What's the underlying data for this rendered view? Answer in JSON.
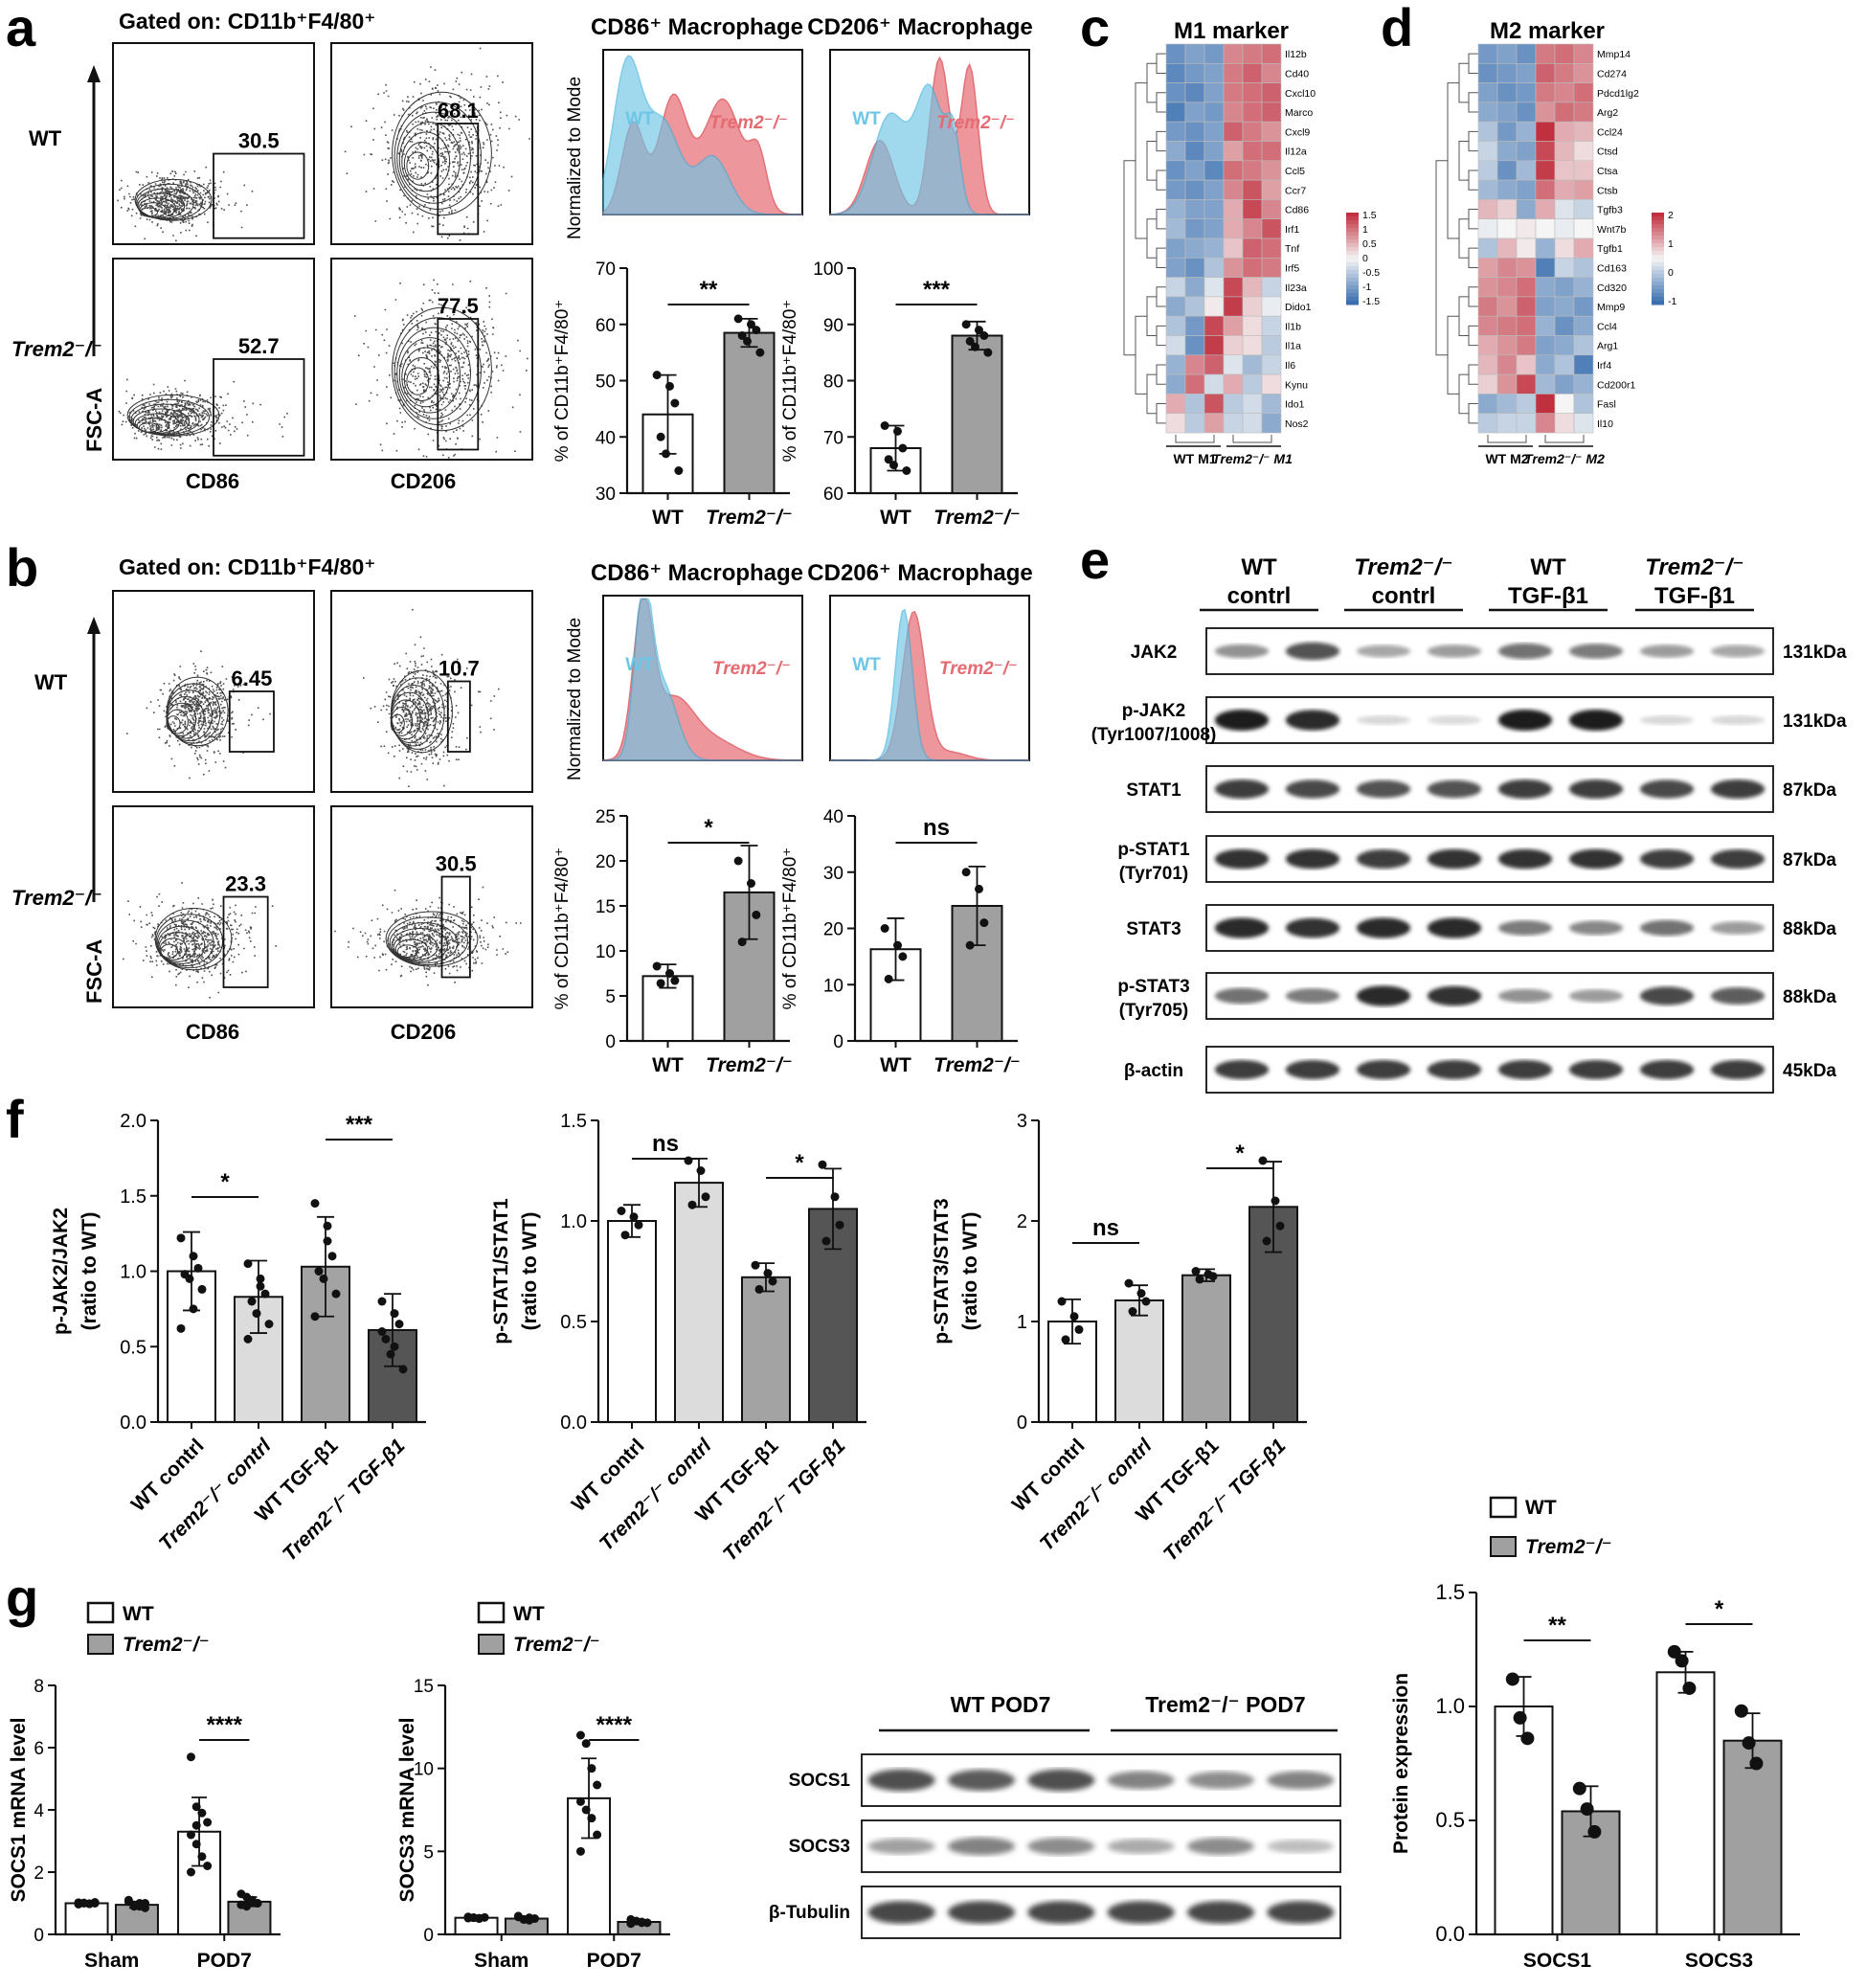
{
  "panels": {
    "a": "a",
    "b": "b",
    "c": "c",
    "d": "d",
    "e": "e",
    "f": "f",
    "g": "g"
  },
  "colors": {
    "wt": "#6ec6e6",
    "ko": "#e8747a",
    "overlap": "#8d9fb8",
    "bar_white": "#ffffff",
    "bar_light": "#dcdcdc",
    "bar_mid": "#a3a3a3",
    "bar_dark": "#555555",
    "bar_gray": "#a0a0a0",
    "hm_high": "#c0303f",
    "hm_low": "#3a6fb0"
  },
  "a": {
    "gated": "Gated on: CD11b⁺F4/80⁺",
    "row_wt": "WT",
    "row_ko": "Trem2⁻/⁻",
    "y_axis": "FSC-A",
    "x1": "CD86",
    "x2": "CD206",
    "gates": [
      "30.5",
      "68.1",
      "52.7",
      "77.5"
    ],
    "hist_ylabel": "Normalized to Mode",
    "hist1_title": "CD86⁺ Macrophage",
    "hist2_title": "CD206⁺ Macrophage",
    "hist_wt": "WT",
    "hist_ko": "Trem2⁻/⁻",
    "bar_ylabel": "% of CD11b⁺F4/80⁺",
    "bar1": {
      "ylim": [
        30,
        70
      ],
      "ticks": [
        "30",
        "40",
        "50",
        "60",
        "70"
      ],
      "wt": 44,
      "wt_sd": 7,
      "ko": 58.5,
      "ko_sd": 2.5,
      "wt_pts": [
        51,
        49,
        46,
        40,
        37,
        34
      ],
      "ko_pts": [
        61,
        60,
        59,
        58,
        57,
        55
      ],
      "sig": "**"
    },
    "bar2": {
      "ylim": [
        60,
        100
      ],
      "ticks": [
        "60",
        "70",
        "80",
        "90",
        "100"
      ],
      "wt": 68,
      "wt_sd": 4,
      "ko": 88,
      "ko_sd": 2.5,
      "wt_pts": [
        72,
        71,
        68,
        66,
        65,
        64
      ],
      "ko_pts": [
        90,
        89,
        88,
        87,
        86,
        85
      ],
      "sig": "***"
    },
    "xcat": [
      "WT",
      "Trem2⁻/⁻"
    ]
  },
  "b": {
    "gated": "Gated on: CD11b⁺F4/80⁺",
    "row_wt": "WT",
    "row_ko": "Trem2⁻/⁻",
    "y_axis": "FSC-A",
    "x1": "CD86",
    "x2": "CD206",
    "gates": [
      "6.45",
      "10.7",
      "23.3",
      "30.5"
    ],
    "hist_ylabel": "Normalized to Mode",
    "hist1_title": "CD86⁺ Macrophage",
    "hist2_title": "CD206⁺ Macrophage",
    "hist_wt": "WT",
    "hist_ko": "Trem2⁻/⁻",
    "bar_ylabel": "% of CD11b⁺F4/80⁺",
    "bar1": {
      "ylim": [
        0,
        25
      ],
      "ticks": [
        "0",
        "5",
        "10",
        "15",
        "20",
        "25"
      ],
      "wt": 7.2,
      "wt_sd": 1.3,
      "ko": 16.5,
      "ko_sd": 5.2,
      "wt_pts": [
        8.3,
        7.5,
        6.7,
        6.4
      ],
      "ko_pts": [
        20,
        17.5,
        14,
        11
      ],
      "sig": "*"
    },
    "bar2": {
      "ylim": [
        0,
        40
      ],
      "ticks": [
        "0",
        "10",
        "20",
        "30",
        "40"
      ],
      "wt": 16.3,
      "wt_sd": 5.5,
      "ko": 24,
      "ko_sd": 7,
      "wt_pts": [
        20,
        17,
        15,
        11
      ],
      "ko_pts": [
        30,
        27,
        21,
        17
      ],
      "sig": "ns"
    },
    "xcat": [
      "WT",
      "Trem2⁻/⁻"
    ]
  },
  "c": {
    "title": "M1 marker",
    "genes": [
      "Il12b",
      "Cd40",
      "Cxcl10",
      "Marco",
      "Cxcl9",
      "Il12a",
      "Ccl5",
      "Ccr7",
      "Cd86",
      "Irf1",
      "Tnf",
      "Irf5",
      "Il23a",
      "Dido1",
      "Il1b",
      "Il1a",
      "Il6",
      "Kynu",
      "Ido1",
      "Nos2"
    ],
    "legend": [
      "1.5",
      "1",
      "0.5",
      "0",
      "-0.5",
      "-1",
      "-1.5"
    ],
    "group1": "WT M1",
    "group2": "Trem2⁻/⁻ M1",
    "values": [
      [
        -1.2,
        -1,
        -1.1,
        0.9,
        1,
        1.1
      ],
      [
        -1.3,
        -1.1,
        -1,
        1,
        1.2,
        0.9
      ],
      [
        -1.2,
        -1.3,
        -1,
        1,
        1.1,
        1.2
      ],
      [
        -1.4,
        -1,
        -1.1,
        0.9,
        1.1,
        1.2
      ],
      [
        -1.1,
        -1.2,
        -1,
        1.2,
        1,
        0.8
      ],
      [
        -0.9,
        -1.3,
        -1,
        0.7,
        1.1,
        1.1
      ],
      [
        -1.2,
        -1,
        -1.3,
        1.1,
        1,
        0.8
      ],
      [
        -1.1,
        -1.2,
        -1,
        0.9,
        1.3,
        0.7
      ],
      [
        -0.8,
        -1,
        -1,
        0.6,
        1.4,
        0.9
      ],
      [
        -0.7,
        -1.1,
        -1,
        0.6,
        0.9,
        1.3
      ],
      [
        -1,
        -0.9,
        -0.8,
        0.4,
        1.2,
        1.1
      ],
      [
        -1,
        -1.2,
        -0.6,
        0.8,
        1.1,
        1
      ],
      [
        -0.4,
        -0.9,
        -0.2,
        1.4,
        0.5,
        -0.4
      ],
      [
        -0.9,
        -0.6,
        0.1,
        1.5,
        0.3,
        -0.1
      ],
      [
        -0.6,
        -1.1,
        1.4,
        0.7,
        0.2,
        -0.4
      ],
      [
        -0.3,
        -1.2,
        1.5,
        0.3,
        0.2,
        -0.5
      ],
      [
        -0.8,
        0.9,
        1.2,
        -0.2,
        -0.7,
        -0.4
      ],
      [
        -0.9,
        1.1,
        -0.3,
        0.6,
        -0.5,
        0.2
      ],
      [
        0.6,
        -0.6,
        1.3,
        -0.5,
        -0.3,
        -0.7
      ],
      [
        0.2,
        -0.5,
        0.7,
        -0.4,
        -0.3,
        -0.9
      ]
    ]
  },
  "d": {
    "title": "M2 marker",
    "genes": [
      "Mmp14",
      "Cd274",
      "Pdcd1lg2",
      "Arg2",
      "Ccl24",
      "Ctsd",
      "Ctsa",
      "Ctsb",
      "Tgfb3",
      "Wnt7b",
      "Tgfb1",
      "Cd163",
      "Cd320",
      "Mmp9",
      "Ccl4",
      "Arg1",
      "Irf4",
      "Cd200r1",
      "Fasl",
      "Il10"
    ],
    "legend": [
      "2",
      "1",
      "0",
      "-1"
    ],
    "group1": "WT M2",
    "group2": "Trem2⁻/⁻ M2",
    "values": [
      [
        -1.1,
        -1,
        -1.2,
        1,
        1.1,
        0.9
      ],
      [
        -1.2,
        -1.1,
        -1,
        1.2,
        1,
        0.8
      ],
      [
        -1,
        -1.2,
        -1.1,
        1,
        0.9,
        1.1
      ],
      [
        -0.9,
        -1,
        -1.2,
        0.8,
        1.1,
        1
      ],
      [
        -0.6,
        -1.1,
        -0.8,
        1.6,
        0.6,
        0.5
      ],
      [
        -0.4,
        -0.9,
        -1,
        1.4,
        0.5,
        0.2
      ],
      [
        -0.5,
        -1.2,
        -0.7,
        1.5,
        0.4,
        0.4
      ],
      [
        -0.7,
        -0.9,
        -1,
        1.1,
        0.6,
        0.7
      ],
      [
        0.5,
        0.3,
        -0.9,
        0.6,
        -0.2,
        -0.4
      ],
      [
        -0.1,
        0,
        0.1,
        0,
        -0.1,
        0
      ],
      [
        -0.6,
        0.5,
        0.1,
        -0.8,
        0.2,
        0.6
      ],
      [
        0.7,
        0.9,
        0.8,
        -1.4,
        -0.4,
        -0.6
      ],
      [
        0.8,
        0.9,
        1.1,
        -0.9,
        -1,
        -0.8
      ],
      [
        1,
        0.8,
        1.2,
        -1,
        -0.9,
        -1.1
      ],
      [
        0.9,
        1,
        1.1,
        -0.8,
        -1.2,
        -0.9
      ],
      [
        0.6,
        0.8,
        1,
        -1,
        -0.9,
        -0.6
      ],
      [
        0.5,
        0.9,
        0.4,
        -0.9,
        -0.6,
        -1.4
      ],
      [
        0.3,
        0.8,
        1.4,
        -0.7,
        -1,
        -0.8
      ],
      [
        -0.9,
        -0.7,
        -0.5,
        1.8,
        0,
        -0.6
      ],
      [
        -0.5,
        -0.4,
        -0.4,
        0.9,
        0.2,
        -0.2
      ]
    ]
  },
  "e": {
    "headers": [
      "WT\ncontrl",
      "Trem2⁻/⁻\ncontrl",
      "WT\nTGF-β1",
      "Trem2⁻/⁻\nTGF-β1"
    ],
    "h1": [
      "WT",
      "Trem2⁻/⁻",
      "WT",
      "Trem2⁻/⁻"
    ],
    "h2": [
      "contrl",
      "contrl",
      "TGF-β1",
      "TGF-β1"
    ],
    "rows": [
      {
        "label": "JAK2",
        "sub": "",
        "kda": "131kDa",
        "band": [
          0.45,
          0.75,
          0.35,
          0.4,
          0.6,
          0.55,
          0.4,
          0.35
        ]
      },
      {
        "label": "p-JAK2",
        "sub": "(Tyr1007/1008)",
        "kda": "131kDa",
        "band": [
          1,
          0.95,
          0.12,
          0.1,
          1,
          1,
          0.12,
          0.12
        ]
      },
      {
        "label": "STAT1",
        "sub": "",
        "kda": "87kDa",
        "band": [
          0.85,
          0.8,
          0.75,
          0.75,
          0.85,
          0.85,
          0.8,
          0.85
        ]
      },
      {
        "label": "p-STAT1",
        "sub": "(Tyr701)",
        "kda": "87kDa",
        "band": [
          0.9,
          0.9,
          0.85,
          0.9,
          0.9,
          0.9,
          0.85,
          0.85
        ]
      },
      {
        "label": "STAT3",
        "sub": "",
        "kda": "88kDa",
        "band": [
          0.95,
          0.9,
          0.95,
          0.95,
          0.55,
          0.5,
          0.6,
          0.4
        ]
      },
      {
        "label": "p-STAT3",
        "sub": "(Tyr705)",
        "kda": "88kDa",
        "band": [
          0.6,
          0.55,
          0.95,
          0.9,
          0.45,
          0.4,
          0.8,
          0.7
        ]
      },
      {
        "label": "β-actin",
        "sub": "",
        "kda": "45kDa",
        "band": [
          0.85,
          0.85,
          0.85,
          0.85,
          0.85,
          0.85,
          0.85,
          0.85
        ]
      }
    ]
  },
  "f": {
    "xcats": [
      "WT contrl",
      "Trem2⁻/⁻ contrl",
      "WT TGF-β1",
      "Trem2⁻/⁻ TGF-β1"
    ],
    "plots": [
      {
        "ylabel1": "p-JAK2/JAK2",
        "ylabel2": "(ratio to WT)",
        "ylim": [
          0,
          2
        ],
        "ticks": [
          "0.0",
          "0.5",
          "1.0",
          "1.5",
          "2.0"
        ],
        "means": [
          1,
          0.83,
          1.03,
          0.61
        ],
        "sd": [
          0.26,
          0.24,
          0.33,
          0.24
        ],
        "pts": [
          [
            1.22,
            1.1,
            1.02,
            0.98,
            0.95,
            0.88,
            0.62,
            0.75
          ],
          [
            1.05,
            0.95,
            0.85,
            0.8,
            0.72,
            0.65,
            0.55,
            0.9
          ],
          [
            1.45,
            1.3,
            1.1,
            1,
            0.95,
            0.85,
            0.7,
            1.2
          ],
          [
            0.8,
            0.72,
            0.65,
            0.55,
            0.45,
            0.35,
            0.6,
            0.5
          ]
        ],
        "sigs": [
          {
            "a": 0,
            "b": 1,
            "label": "*"
          },
          {
            "a": 2,
            "b": 3,
            "label": "***"
          }
        ]
      },
      {
        "ylabel1": "p-STAT1/STAT1",
        "ylabel2": "(ratio to WT)",
        "ylim": [
          0,
          1.5
        ],
        "ticks": [
          "0.0",
          "0.5",
          "1.0",
          "1.5"
        ],
        "means": [
          1,
          1.19,
          0.72,
          1.06
        ],
        "sd": [
          0.08,
          0.12,
          0.07,
          0.2
        ],
        "pts": [
          [
            1.05,
            1.02,
            0.98,
            0.93
          ],
          [
            1.3,
            1.25,
            1.12,
            1.08
          ],
          [
            0.78,
            0.74,
            0.7,
            0.66
          ],
          [
            1.28,
            1.12,
            0.98,
            0.9
          ]
        ],
        "sigs": [
          {
            "a": 0,
            "b": 1,
            "label": "ns"
          },
          {
            "a": 2,
            "b": 3,
            "label": "*"
          }
        ]
      },
      {
        "ylabel1": "p-STAT3/STAT3",
        "ylabel2": "(ratio to WT)",
        "ylim": [
          0,
          3
        ],
        "ticks": [
          "0",
          "1",
          "2",
          "3"
        ],
        "means": [
          1,
          1.21,
          1.46,
          2.14
        ],
        "sd": [
          0.22,
          0.15,
          0.06,
          0.45
        ],
        "pts": [
          [
            1.2,
            1.05,
            0.92,
            0.82
          ],
          [
            1.38,
            1.28,
            1.2,
            1.1
          ],
          [
            1.5,
            1.47,
            1.45,
            1.42
          ],
          [
            2.6,
            2.2,
            1.95,
            1.8
          ]
        ],
        "sigs": [
          {
            "a": 0,
            "b": 1,
            "label": "ns"
          },
          {
            "a": 2,
            "b": 3,
            "label": "*"
          }
        ]
      }
    ]
  },
  "g": {
    "legend_wt": "WT",
    "legend_ko": "Trem2⁻/⁻",
    "socs1": {
      "ylabel": "SOCS1 mRNA level",
      "ylim": [
        0,
        8
      ],
      "ticks": [
        "0",
        "2",
        "4",
        "6",
        "8"
      ],
      "cats": [
        "Sham",
        "POD7"
      ],
      "wt": [
        1,
        3.3
      ],
      "wt_sd": [
        0.05,
        1.1
      ],
      "ko": [
        0.95,
        1.05
      ],
      "ko_sd": [
        0.1,
        0.15
      ],
      "wt_pts": [
        [
          1.02,
          1,
          0.98,
          1.03,
          0.97,
          1.01,
          0.99,
          1
        ],
        [
          5.7,
          4.1,
          3.9,
          3.6,
          3.2,
          2.9,
          2.5,
          2.2,
          2,
          3.5
        ]
      ],
      "ko_pts": [
        [
          1.1,
          0.9,
          1,
          0.85,
          1.05,
          0.95,
          0.9,
          1
        ],
        [
          1.3,
          1.2,
          1.1,
          1,
          0.95,
          0.9,
          1.05,
          1
        ]
      ],
      "sig": "****"
    },
    "socs3": {
      "ylabel": "SOCS3 mRNA level",
      "ylim": [
        0,
        15
      ],
      "ticks": [
        "0",
        "5",
        "10",
        "15"
      ],
      "cats": [
        "Sham",
        "POD7"
      ],
      "wt": [
        1,
        8.2
      ],
      "wt_sd": [
        0.08,
        2.4
      ],
      "ko": [
        0.95,
        0.75
      ],
      "ko_sd": [
        0.1,
        0.12
      ],
      "wt_pts": [
        [
          1.05,
          1,
          0.95,
          1.02,
          0.98,
          1.01,
          0.97
        ],
        [
          12,
          11.5,
          10,
          9,
          8,
          7.5,
          7,
          6,
          5
        ]
      ],
      "ko_pts": [
        [
          1.1,
          0.9,
          1,
          0.95,
          1.05,
          0.9,
          0.85
        ],
        [
          0.9,
          0.8,
          0.75,
          0.7,
          0.65,
          0.8,
          0.7
        ]
      ],
      "sig": "****"
    },
    "blot": {
      "hdr1": "WT POD7",
      "hdr2": "Trem2⁻/⁻ POD7",
      "rows": [
        {
          "label": "SOCS1",
          "band": [
            0.8,
            0.75,
            0.8,
            0.55,
            0.5,
            0.55
          ]
        },
        {
          "label": "SOCS3",
          "band": [
            0.4,
            0.55,
            0.5,
            0.35,
            0.5,
            0.25
          ]
        },
        {
          "label": "β-Tubulin",
          "band": [
            0.85,
            0.85,
            0.85,
            0.85,
            0.85,
            0.85
          ]
        }
      ]
    },
    "protein": {
      "ylabel": "Protein expression",
      "ylim": [
        0,
        1.5
      ],
      "ticks": [
        "0.0",
        "0.5",
        "1.0",
        "1.5"
      ],
      "cats": [
        "SOCS1",
        "SOCS3"
      ],
      "wt": [
        1,
        1.15
      ],
      "wt_sd": [
        0.13,
        0.09
      ],
      "ko": [
        0.54,
        0.85
      ],
      "ko_sd": [
        0.11,
        0.12
      ],
      "wt_pts": [
        [
          1.12,
          0.95,
          0.86
        ],
        [
          1.24,
          1.2,
          1.08
        ]
      ],
      "ko_pts": [
        [
          0.64,
          0.55,
          0.45
        ],
        [
          0.98,
          0.84,
          0.75
        ]
      ],
      "sigs": [
        "**",
        "*"
      ]
    }
  }
}
